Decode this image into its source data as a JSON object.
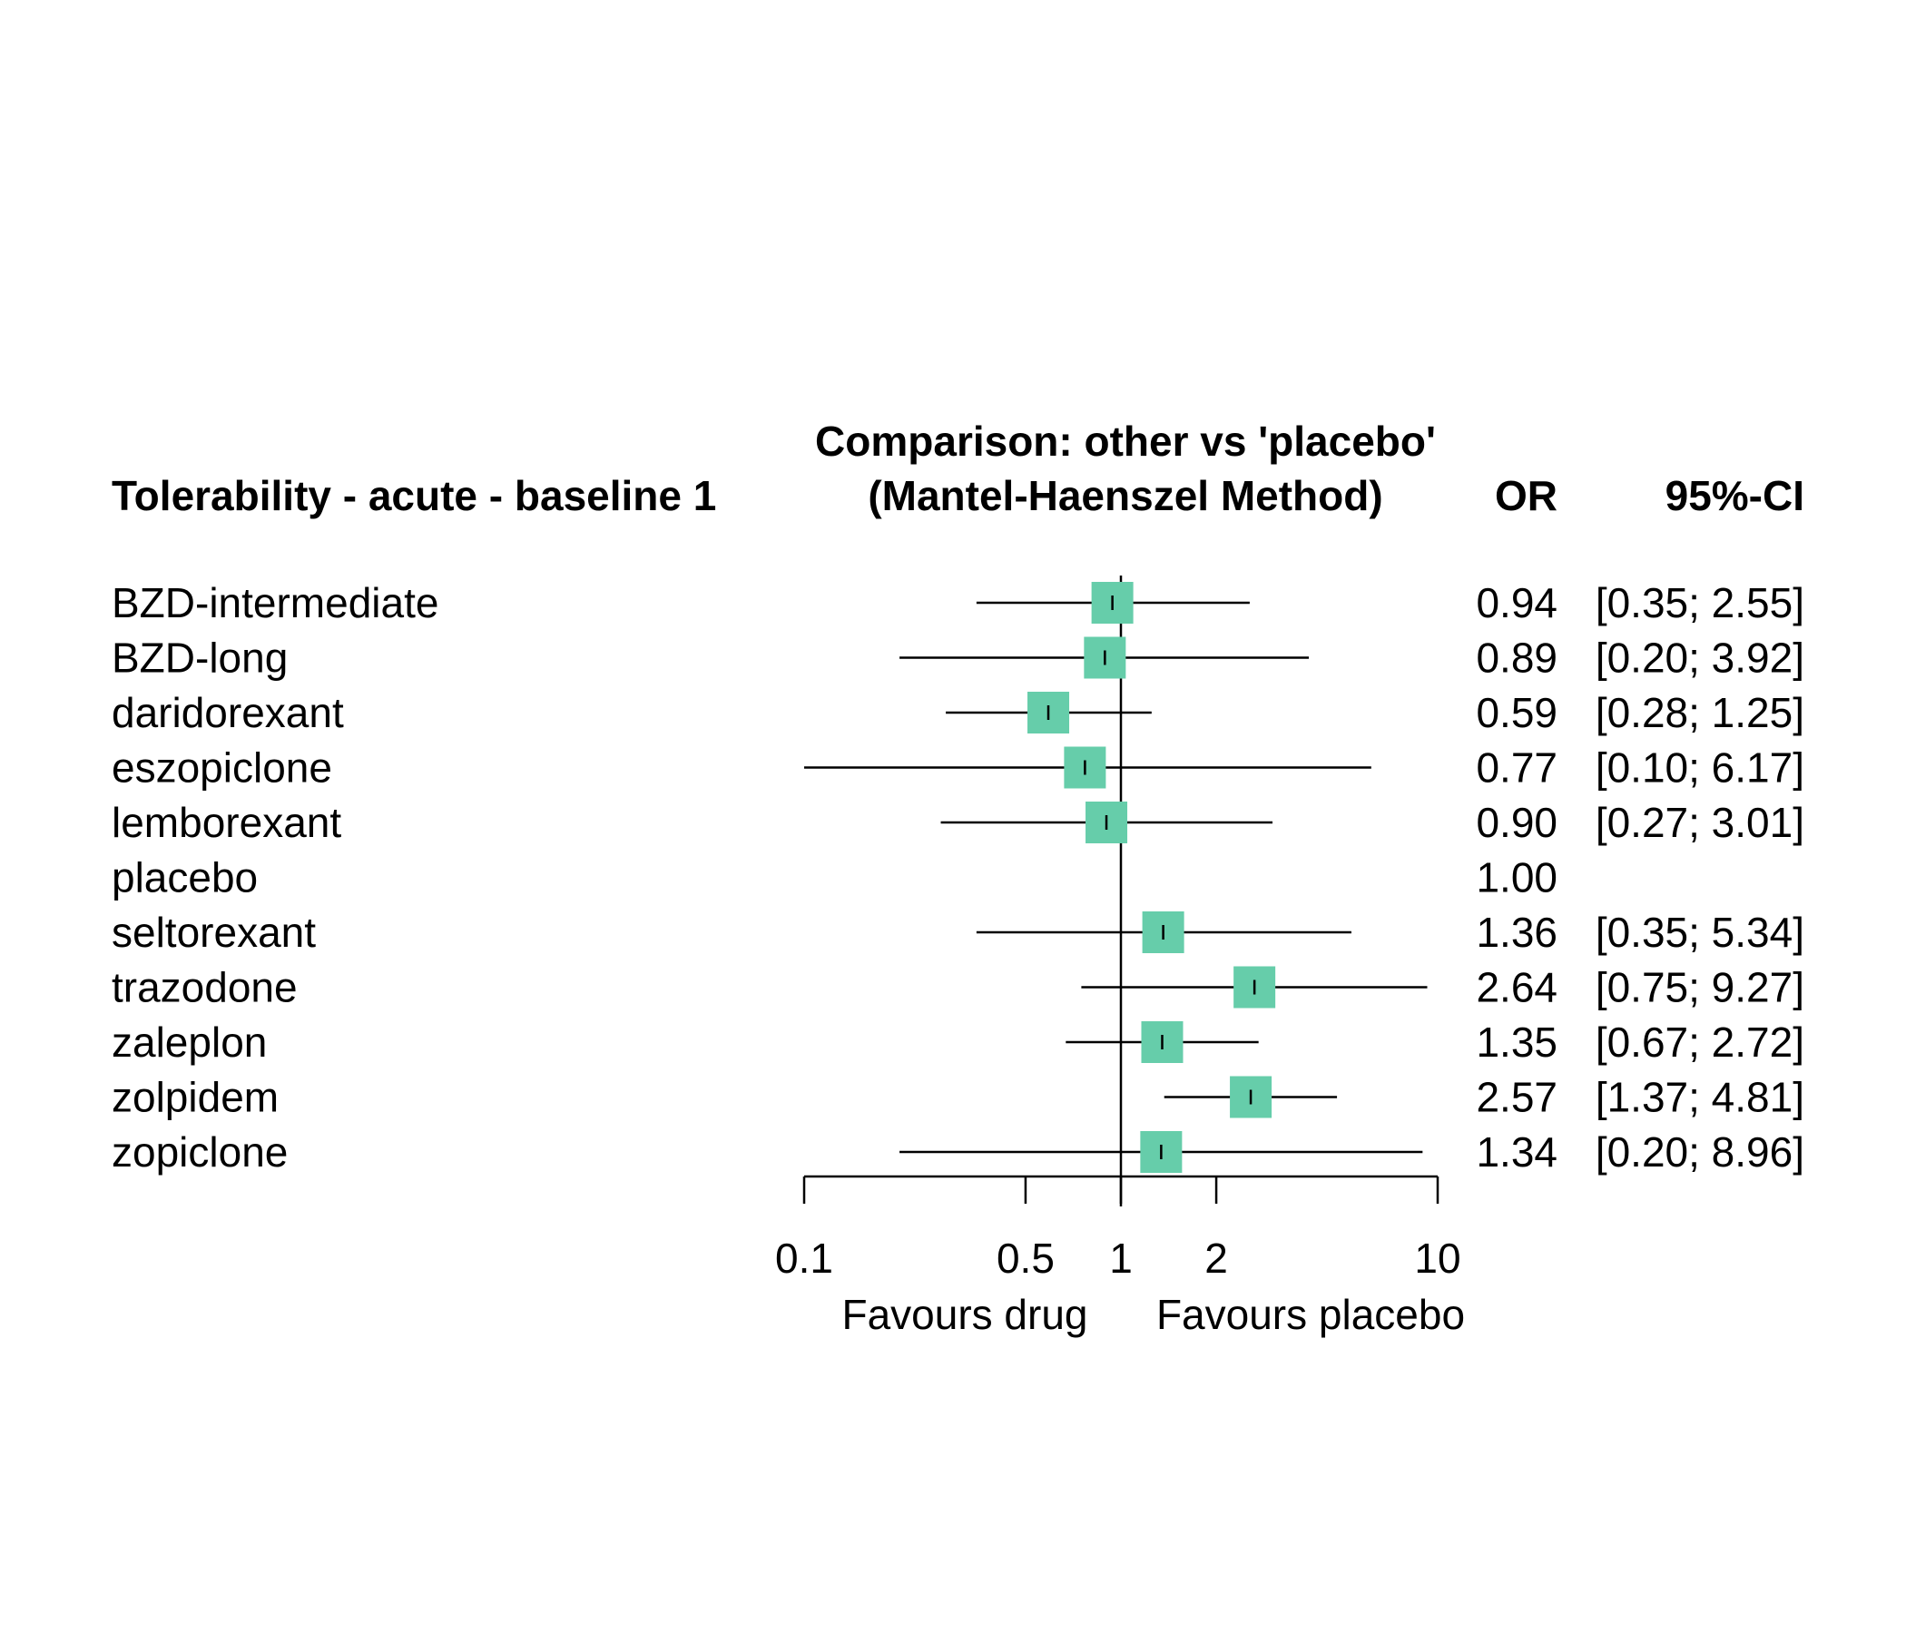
{
  "chart_data": {
    "type": "forest",
    "title_line1": "Comparison: other vs 'placebo'",
    "title_line2": "(Mantel-Haenszel Method)",
    "outcome_header": "Tolerability - acute - baseline 1",
    "or_header": "OR",
    "ci_header": "95%-CI",
    "x_scale": "log",
    "xlim": [
      0.1,
      10
    ],
    "reference_line": 1,
    "x_ticks": [
      {
        "value": 0.1,
        "label": "0.1"
      },
      {
        "value": 0.5,
        "label": "0.5"
      },
      {
        "value": 1,
        "label": "1"
      },
      {
        "value": 2,
        "label": "2"
      },
      {
        "value": 10,
        "label": "10"
      }
    ],
    "left_label": "Favours drug",
    "right_label": "Favours placebo",
    "marker_color": "#66CDAA",
    "rows": [
      {
        "name": "BZD-intermediate",
        "or": 0.94,
        "lower": 0.35,
        "upper": 2.55,
        "or_text": "0.94",
        "ci_text": "[0.35; 2.55]"
      },
      {
        "name": "BZD-long",
        "or": 0.89,
        "lower": 0.2,
        "upper": 3.92,
        "or_text": "0.89",
        "ci_text": "[0.20; 3.92]"
      },
      {
        "name": "daridorexant",
        "or": 0.59,
        "lower": 0.28,
        "upper": 1.25,
        "or_text": "0.59",
        "ci_text": "[0.28; 1.25]"
      },
      {
        "name": "eszopiclone",
        "or": 0.77,
        "lower": 0.1,
        "upper": 6.17,
        "or_text": "0.77",
        "ci_text": "[0.10; 6.17]"
      },
      {
        "name": "lemborexant",
        "or": 0.9,
        "lower": 0.27,
        "upper": 3.01,
        "or_text": "0.90",
        "ci_text": "[0.27; 3.01]"
      },
      {
        "name": "placebo",
        "or": 1.0,
        "lower": null,
        "upper": null,
        "or_text": "1.00",
        "ci_text": ""
      },
      {
        "name": "seltorexant",
        "or": 1.36,
        "lower": 0.35,
        "upper": 5.34,
        "or_text": "1.36",
        "ci_text": "[0.35; 5.34]"
      },
      {
        "name": "trazodone",
        "or": 2.64,
        "lower": 0.75,
        "upper": 9.27,
        "or_text": "2.64",
        "ci_text": "[0.75; 9.27]"
      },
      {
        "name": "zaleplon",
        "or": 1.35,
        "lower": 0.67,
        "upper": 2.72,
        "or_text": "1.35",
        "ci_text": "[0.67; 2.72]"
      },
      {
        "name": "zolpidem",
        "or": 2.57,
        "lower": 1.37,
        "upper": 4.81,
        "or_text": "2.57",
        "ci_text": "[1.37; 4.81]"
      },
      {
        "name": "zopiclone",
        "or": 1.34,
        "lower": 0.2,
        "upper": 8.96,
        "or_text": "1.34",
        "ci_text": "[0.20; 8.96]"
      }
    ]
  }
}
